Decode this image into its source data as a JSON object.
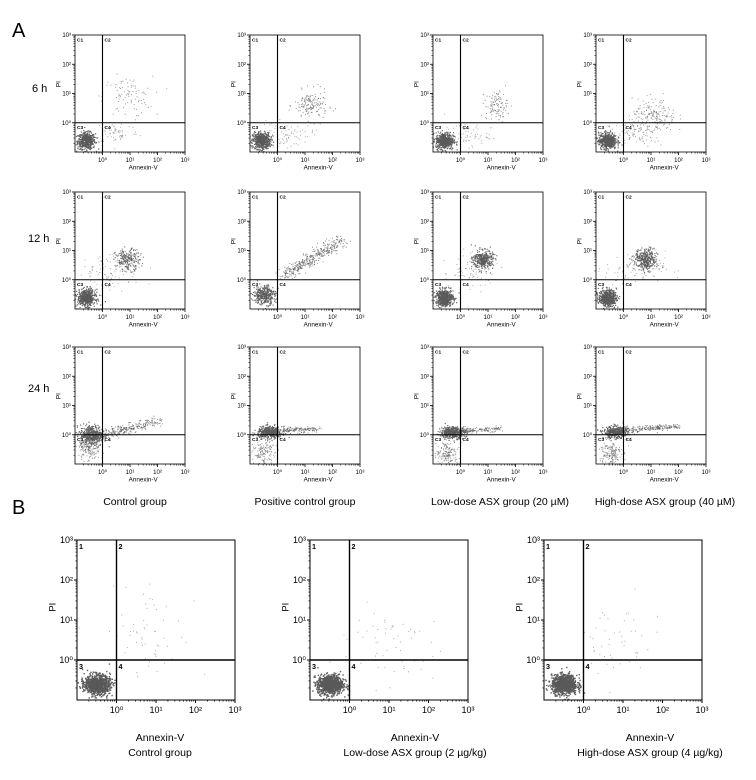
{
  "panel_labels": {
    "a": "A",
    "b": "B"
  },
  "panel_a": {
    "row_labels": [
      "6 h",
      "12 h",
      "24 h"
    ],
    "column_captions": [
      "Control group",
      "Positive control group",
      "Low-dose ASX group (20 µM)",
      "High-dose ASX group (40 µM)"
    ]
  },
  "panel_b": {
    "xlabel_caption": "Annexin-V",
    "captions": [
      "Control group",
      "Low-dose ASX group (2 µg/kg)",
      "High-dose ASX group (4 µg/kg)"
    ]
  },
  "chart_data": {
    "type": "scatter",
    "xlabel": "Annexin-V",
    "ylabel": "PI",
    "x_scale": "log",
    "y_scale": "log",
    "xlim": [
      0.1,
      1000
    ],
    "ylim": [
      0.1,
      1000
    ],
    "x_ticks": [
      "10⁰",
      "10¹",
      "10²",
      "10³"
    ],
    "y_ticks": [
      "10⁰",
      "10¹",
      "10²",
      "10³"
    ],
    "quadrant_gate": {
      "x": 1,
      "y": 1
    },
    "panel_a_quadrant_labels": [
      "C1",
      "C2",
      "C3",
      "C4"
    ],
    "panel_b_quadrant_labels": [
      "1",
      "2",
      "3",
      "4"
    ],
    "point_color": "#5a5a5a"
  }
}
